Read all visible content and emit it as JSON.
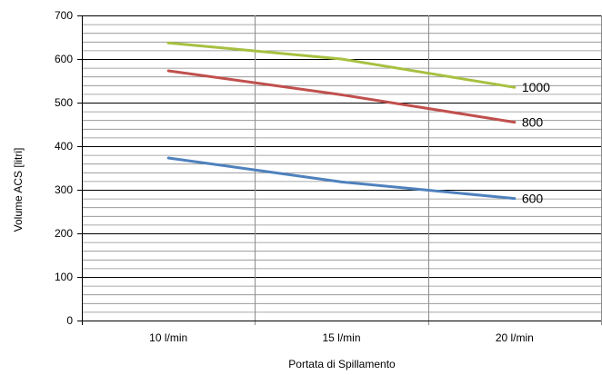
{
  "chart_data": {
    "type": "line",
    "categories": [
      "10 l/min",
      "15 l/min",
      "20 l/min"
    ],
    "series": [
      {
        "name": "1000",
        "values": [
          637,
          600,
          535
        ],
        "color": "#a7c041"
      },
      {
        "name": "800",
        "values": [
          573,
          518,
          455
        ],
        "color": "#c0504d"
      },
      {
        "name": "600",
        "values": [
          373,
          318,
          280
        ],
        "color": "#4f81bd"
      }
    ],
    "xlabel": "Portata di Spillamento",
    "ylabel": "Volume ACS [litri]",
    "ylim": [
      0,
      700
    ],
    "yticks": [
      0,
      100,
      200,
      300,
      400,
      500,
      600,
      700
    ],
    "minor_step": 20,
    "grid": true,
    "legend": "labels at line ends"
  }
}
